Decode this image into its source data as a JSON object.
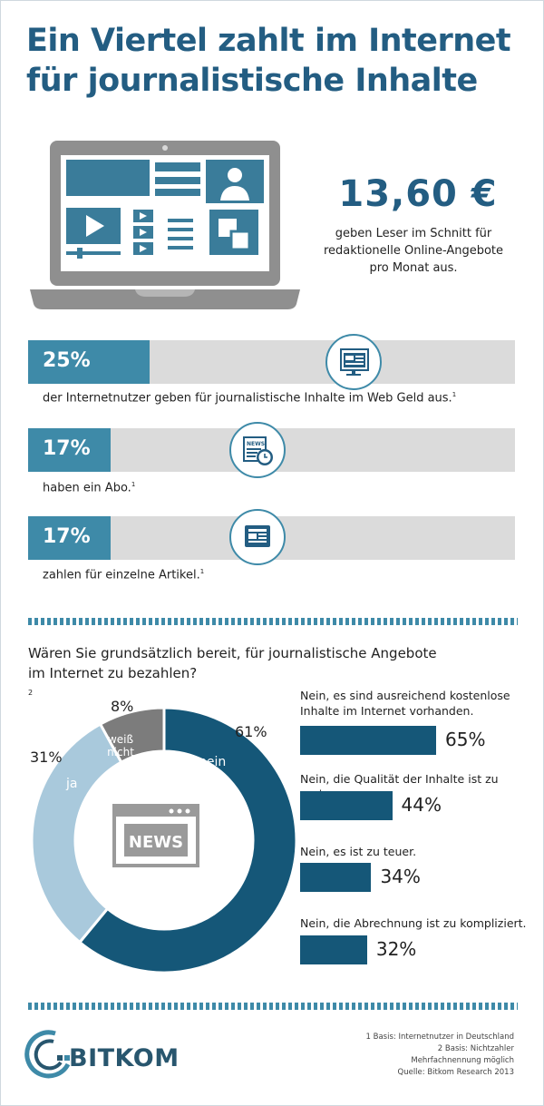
{
  "title": {
    "line1": "Ein Viertel zahlt im Internet",
    "line2": "für journalistische Inhalte"
  },
  "headline_stat": {
    "value": "13,60 €",
    "line1": "geben Leser im Schnitt für",
    "line2": "redaktionelle Online-Angebote",
    "line3": "pro Monat aus."
  },
  "bars": [
    {
      "pct_label": "25%",
      "value": 25,
      "text": "der Internetnutzer geben für journalistische Inhalte im Web Geld aus.",
      "footnote": "1",
      "icon": "computer-screen-icon"
    },
    {
      "pct_label": "17%",
      "value": 17,
      "text": "haben ein Abo.",
      "footnote": "1",
      "icon": "newspaper-clock-icon"
    },
    {
      "pct_label": "17%",
      "value": 17,
      "text": "zahlen für einzelne Artikel.",
      "footnote": "1",
      "icon": "tablet-article-icon"
    }
  ],
  "question": {
    "line1": "Wären Sie grundsätzlich bereit, für journalistische Angebote",
    "line2": "im Internet zu bezahlen?",
    "footnote": "2"
  },
  "chart_data": [
    {
      "type": "pie",
      "categories": [
        "nein",
        "ja",
        "weiß nicht"
      ],
      "values": [
        61,
        31,
        8
      ],
      "labels": [
        "61%",
        "31%",
        "8%"
      ],
      "colors": [
        "#155778",
        "#a9c9dc",
        "#7c7c7c"
      ],
      "center_icon": "news-icon",
      "center_text": "NEWS"
    },
    {
      "type": "bar",
      "orientation": "horizontal",
      "categories": [
        "Nein, es sind ausreichend kostenlose Inhalte im Internet vorhanden.",
        "Nein, die Qualität der Inhalte ist zu gering.",
        "Nein, es ist zu teuer.",
        "Nein, die Abrechnung ist zu kompliziert."
      ],
      "values": [
        65,
        44,
        34,
        32
      ],
      "labels": [
        "65%",
        "44%",
        "34%",
        "32%"
      ],
      "color": "#155778"
    }
  ],
  "reasons": [
    {
      "line1": "Nein, es sind ausreichend kostenlose",
      "line2": "Inhalte im Internet vorhanden.",
      "pct": "65%"
    },
    {
      "line1": "Nein, die Qualität der Inhalte ist zu gering.",
      "line2": "",
      "pct": "44%"
    },
    {
      "line1": "Nein, es ist zu teuer.",
      "line2": "",
      "pct": "34%"
    },
    {
      "line1": "Nein, die Abrechnung ist zu kompliziert.",
      "line2": "",
      "pct": "32%"
    }
  ],
  "donut_labels": {
    "nein": "nein",
    "ja": "ja",
    "weiss_line1": "weiß",
    "weiss_line2": "nicht"
  },
  "footnotes": [
    "1 Basis: Internetnutzer in Deutschland",
    "2 Basis: Nichtzahler",
    "Mehrfachnennung möglich",
    "Quelle: Bitkom Research 2013"
  ],
  "logo": {
    "text": "BITKOM"
  },
  "colors": {
    "title": "#235d82",
    "bar": "#3e8aa8",
    "bar_bg": "#dbdbdb",
    "dark": "#155778",
    "light": "#a9c9dc",
    "grey": "#7c7c7c"
  }
}
